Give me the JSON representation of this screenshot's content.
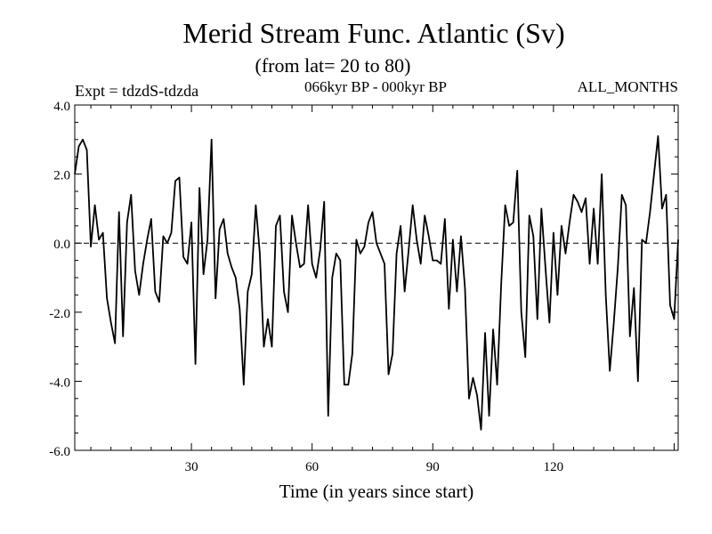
{
  "chart_data": {
    "type": "line",
    "title": "Merid Stream Func. Atlantic (Sv)",
    "subtitle": "(from lat= 20 to 80)",
    "left_note": "Expt = tdzdS-tdzda",
    "center_note": "066kyr BP - 000kyr BP",
    "right_note": "ALL_MONTHS",
    "xlabel": "Time (in years since start)",
    "ylabel": "",
    "xlim": [
      1,
      151
    ],
    "ylim": [
      -6.0,
      4.0
    ],
    "x_ticks": [
      30,
      60,
      90,
      120
    ],
    "x_tick_labels": [
      "30",
      "60",
      "90",
      "120"
    ],
    "y_ticks": [
      4,
      2,
      0,
      -2,
      -4,
      -6
    ],
    "y_tick_labels": [
      "4.0",
      "2.0",
      "0.0",
      "-2.0",
      "-4.0",
      "-6.0"
    ],
    "zero_line": 0,
    "grid": false,
    "x": [
      1,
      2,
      3,
      4,
      5,
      6,
      7,
      8,
      9,
      10,
      11,
      12,
      13,
      14,
      15,
      16,
      17,
      18,
      19,
      20,
      21,
      22,
      23,
      24,
      25,
      26,
      27,
      28,
      29,
      30,
      31,
      32,
      33,
      34,
      35,
      36,
      37,
      38,
      39,
      40,
      41,
      42,
      43,
      44,
      45,
      46,
      47,
      48,
      49,
      50,
      51,
      52,
      53,
      54,
      55,
      56,
      57,
      58,
      59,
      60,
      61,
      62,
      63,
      64,
      65,
      66,
      67,
      68,
      69,
      70,
      71,
      72,
      73,
      74,
      75,
      76,
      77,
      78,
      79,
      80,
      81,
      82,
      83,
      84,
      85,
      86,
      87,
      88,
      89,
      90,
      91,
      92,
      93,
      94,
      95,
      96,
      97,
      98,
      99,
      100,
      101,
      102,
      103,
      104,
      105,
      106,
      107,
      108,
      109,
      110,
      111,
      112,
      113,
      114,
      115,
      116,
      117,
      118,
      119,
      120,
      121,
      122,
      123,
      124,
      125,
      126,
      127,
      128,
      129,
      130,
      131,
      132,
      133,
      134,
      135,
      136,
      137,
      138,
      139,
      140,
      141,
      142,
      143,
      144,
      145,
      146,
      147,
      148,
      149,
      150,
      151
    ],
    "series": [
      {
        "name": "Merid Stream Func.",
        "values": [
          2.0,
          2.8,
          3.0,
          2.7,
          -0.1,
          1.1,
          0.1,
          0.3,
          -1.6,
          -2.3,
          -2.9,
          0.9,
          -2.7,
          0.6,
          1.4,
          -0.8,
          -1.5,
          -0.6,
          0.1,
          0.7,
          -1.4,
          -1.7,
          0.2,
          0.0,
          0.3,
          1.8,
          1.9,
          -0.4,
          -0.6,
          0.6,
          -3.5,
          1.6,
          -0.9,
          0.1,
          3.0,
          -1.6,
          0.4,
          0.7,
          -0.3,
          -0.7,
          -1.0,
          -1.9,
          -4.1,
          -1.4,
          -0.9,
          1.1,
          -0.3,
          -3.0,
          -2.2,
          -3.0,
          0.5,
          0.8,
          -1.4,
          -2.0,
          0.8,
          0.0,
          -0.7,
          -0.6,
          1.1,
          -0.6,
          -1.0,
          -0.2,
          1.2,
          -5.0,
          -1.0,
          -0.3,
          -0.5,
          -4.1,
          -4.1,
          -3.2,
          0.1,
          -0.3,
          -0.1,
          0.6,
          0.9,
          0.0,
          -0.3,
          -0.6,
          -3.8,
          -3.2,
          -0.3,
          0.5,
          -1.4,
          -0.2,
          1.1,
          0.1,
          -0.6,
          0.8,
          0.2,
          -0.5,
          -0.5,
          -0.6,
          0.7,
          -1.9,
          0.1,
          -1.4,
          0.2,
          -1.3,
          -4.5,
          -3.9,
          -4.4,
          -5.4,
          -2.6,
          -5.0,
          -2.5,
          -4.1,
          -1.2,
          1.1,
          0.5,
          0.6,
          2.1,
          -2.0,
          -3.3,
          0.8,
          0.2,
          -2.2,
          1.0,
          -0.7,
          -2.3,
          0.3,
          -1.5,
          0.5,
          -0.3,
          0.6,
          1.4,
          1.2,
          0.9,
          1.3,
          -0.6,
          1.0,
          -0.6,
          2.0,
          -1.5,
          -3.7,
          -2.3,
          -0.7,
          1.4,
          1.1,
          -2.7,
          -1.3,
          -4.0,
          0.1,
          0.0,
          0.9,
          2.0,
          3.1,
          1.0,
          1.4,
          -1.8,
          -2.2,
          0.1
        ]
      }
    ]
  }
}
